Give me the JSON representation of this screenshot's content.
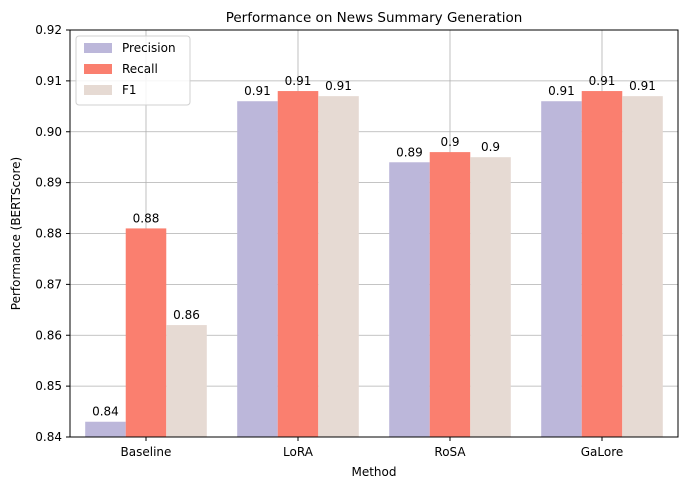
{
  "chart_data": {
    "type": "bar",
    "title": "Performance on News Summary Generation",
    "xlabel": "Method",
    "ylabel": "Performance (BERTScore)",
    "categories": [
      "Baseline",
      "LoRA",
      "RoSA",
      "GaLore"
    ],
    "ylim": [
      0.84,
      0.92
    ],
    "yticks": [
      "0.84",
      "0.85",
      "0.86",
      "0.87",
      "0.88",
      "0.89",
      "0.90",
      "0.91",
      "0.92"
    ],
    "grid": true,
    "legend_position": "top-left",
    "series": [
      {
        "name": "Precision",
        "color": "#bcb7da",
        "values": [
          0.843,
          0.906,
          0.894,
          0.906
        ],
        "labels": [
          "0.84",
          "0.91",
          "0.89",
          "0.91"
        ]
      },
      {
        "name": "Recall",
        "color": "#fa7f6f",
        "values": [
          0.881,
          0.908,
          0.896,
          0.908
        ],
        "labels": [
          "0.88",
          "0.91",
          "0.9",
          "0.91"
        ]
      },
      {
        "name": "F1",
        "color": "#e6dad3",
        "values": [
          0.862,
          0.907,
          0.895,
          0.907
        ],
        "labels": [
          "0.86",
          "0.91",
          "0.9",
          "0.91"
        ]
      }
    ]
  }
}
